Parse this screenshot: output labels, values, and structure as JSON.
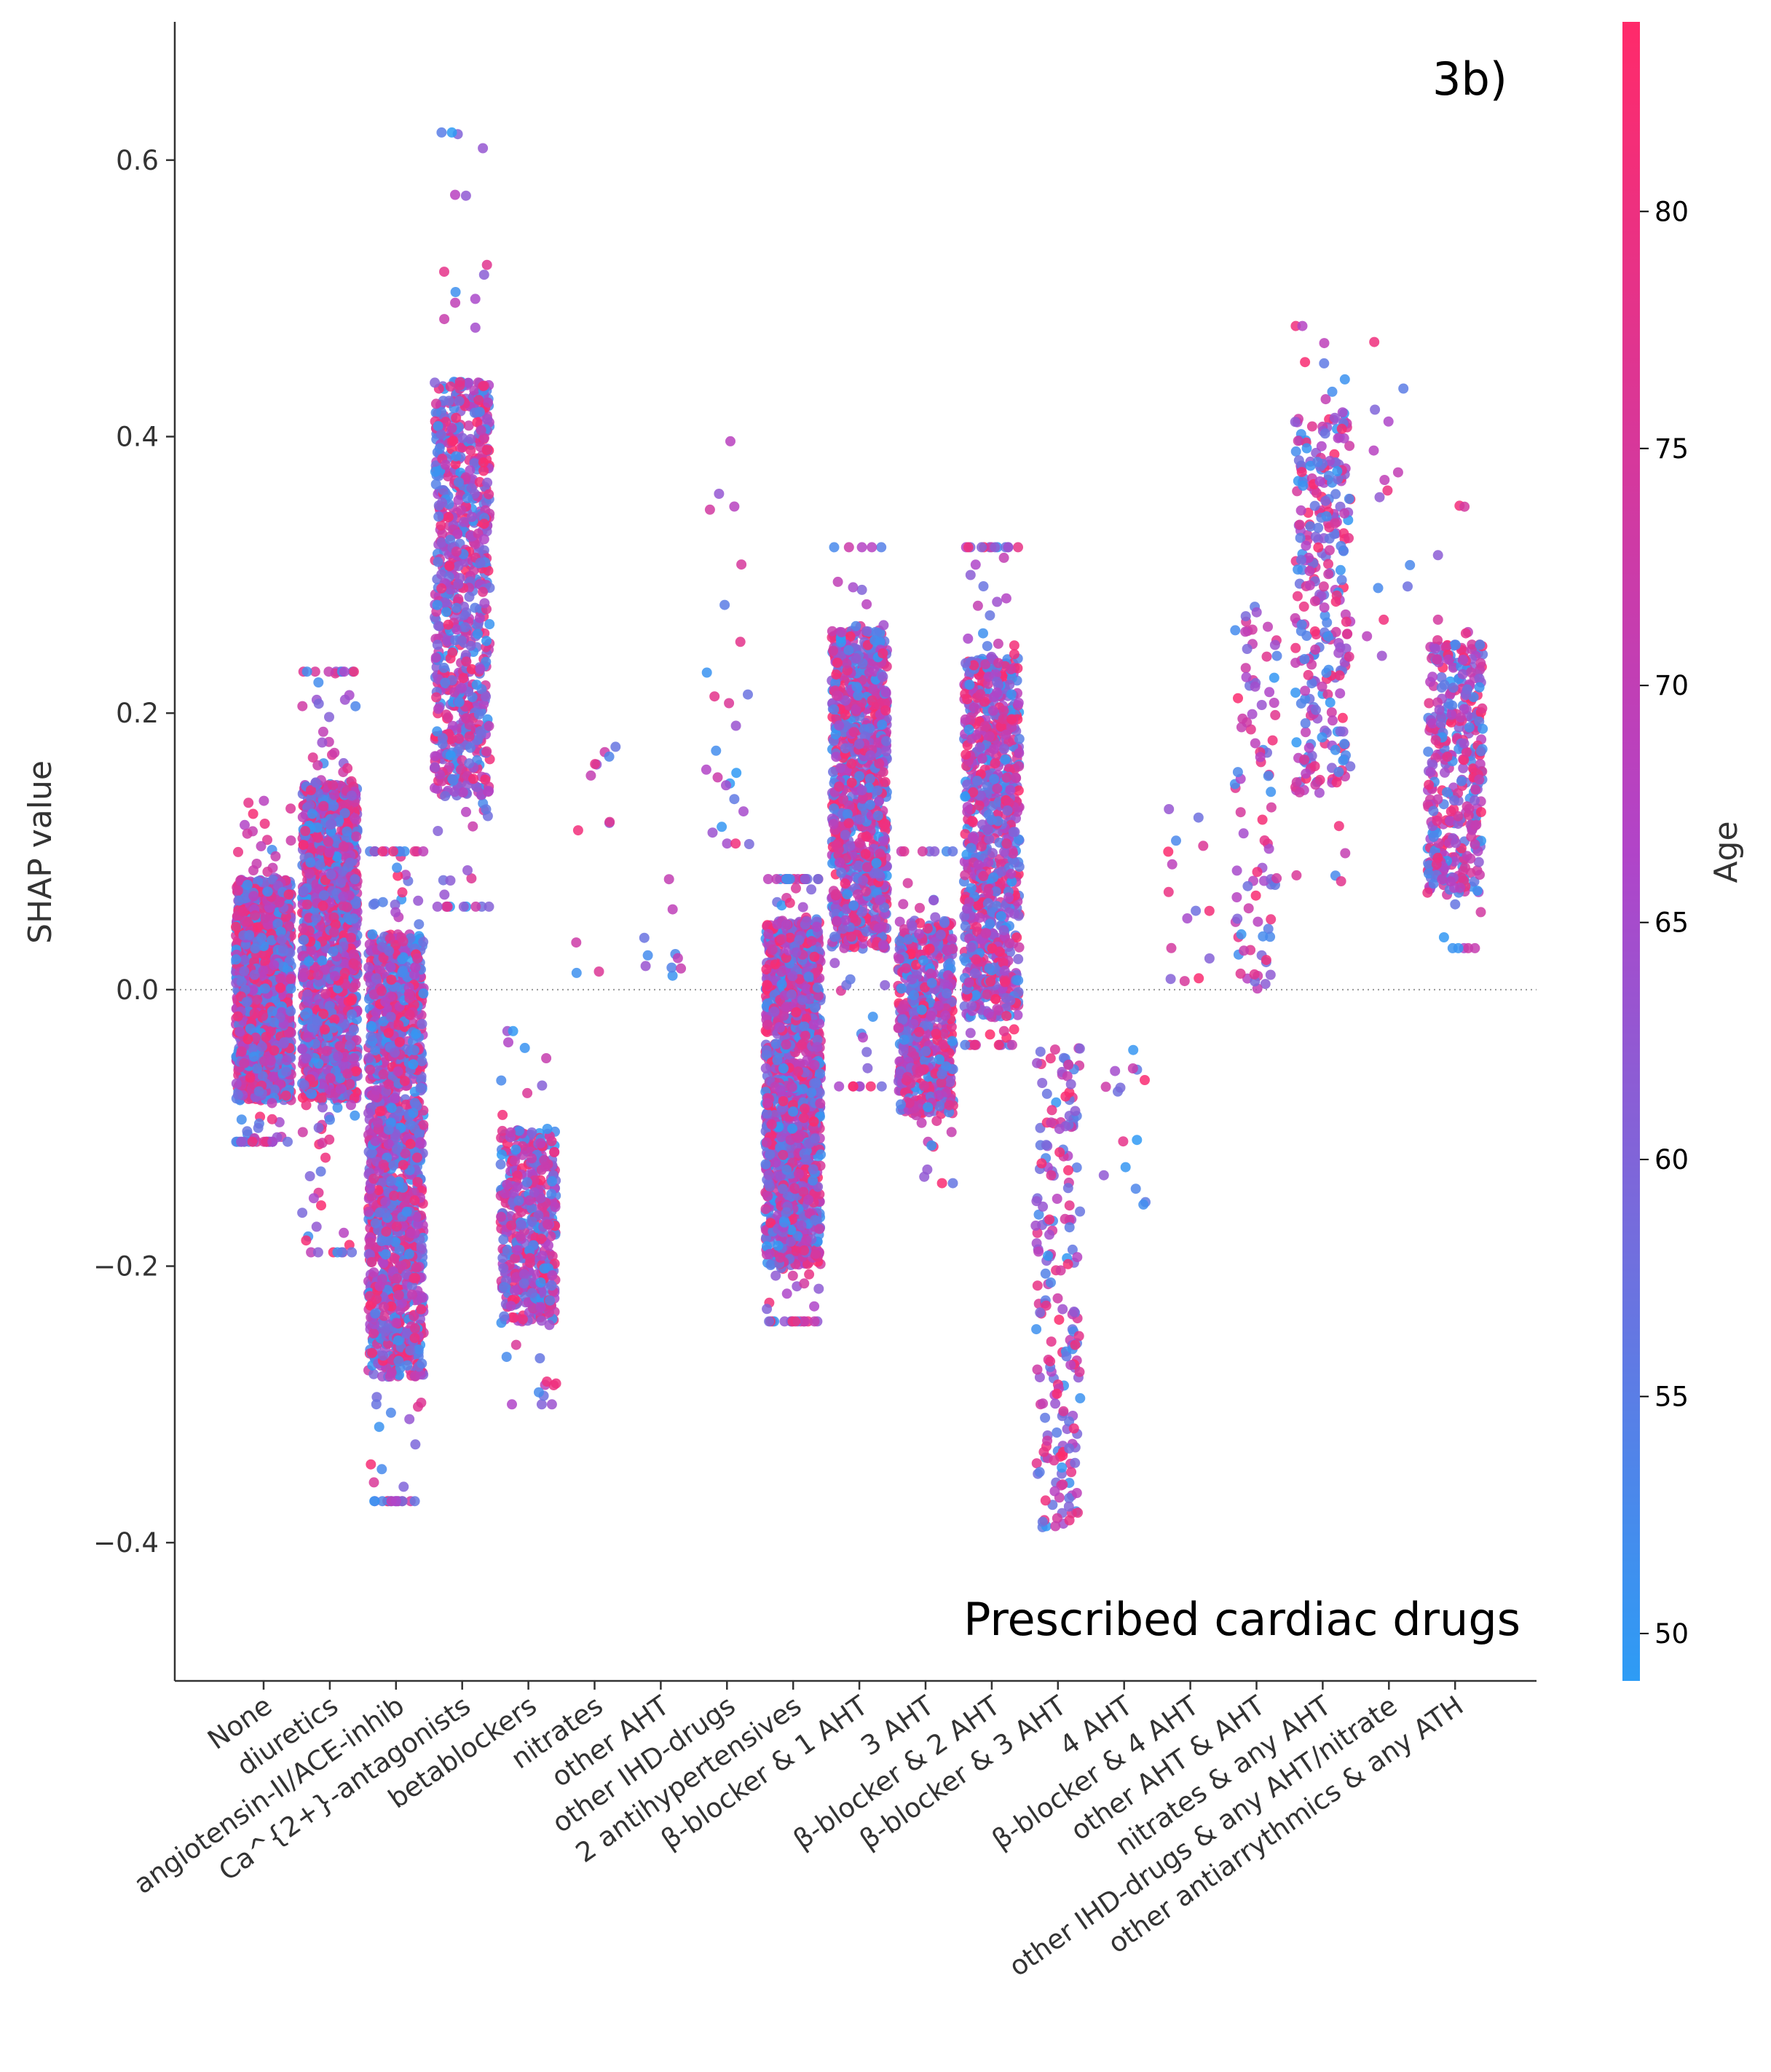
{
  "chart_data": {
    "type": "scatter",
    "panel_label": "3b)",
    "annotation": "Prescribed cardiac drugs",
    "ylabel": "SHAP value",
    "ylim": [
      -0.5,
      0.7
    ],
    "yticks": [
      -0.4,
      -0.2,
      0.0,
      0.2,
      0.4,
      0.6
    ],
    "ytick_labels": [
      "−0.4",
      "−0.2",
      "0.0",
      "0.2",
      "0.4",
      "0.6"
    ],
    "zero_line": true,
    "colorbar": {
      "label": "Age",
      "range": [
        49,
        84
      ],
      "ticks": [
        50,
        55,
        60,
        65,
        70,
        75,
        80
      ],
      "color_low": "#2d9cf5",
      "color_mid": "#b144c8",
      "color_high": "#ff2a6a"
    },
    "categories": [
      "None",
      "diuretics",
      "angiotensin-II/ACE-inhib",
      "Ca^{2+}-antagonists",
      "betablockers",
      "nitrates",
      "other AHT",
      "other IHD-drugs",
      "2 antihypertensives",
      "β-blocker & 1 AHT",
      "3 AHT",
      "β-blocker & 2 AHT",
      "β-blocker & 3 AHT",
      "4 AHT",
      "β-blocker & 4 AHT",
      "other AHT & AHT",
      "nitrates & any AHT",
      "other IHD-drugs & any AHT/nitrate",
      "other antiarrythmics & any ATH"
    ],
    "series": [
      {
        "category": "None",
        "n": 1500,
        "core": [
          -0.08,
          0.08
        ],
        "range": [
          -0.11,
          0.14
        ]
      },
      {
        "category": "diuretics",
        "n": 1500,
        "core": [
          -0.08,
          0.15
        ],
        "range": [
          -0.19,
          0.23
        ]
      },
      {
        "category": "angiotensin-II/ACE-inhib",
        "n": 1500,
        "core": [
          -0.28,
          0.04
        ],
        "range": [
          -0.37,
          0.1
        ]
      },
      {
        "category": "Ca^{2+}-antagonists",
        "n": 800,
        "core": [
          0.14,
          0.44
        ],
        "range": [
          0.06,
          0.62
        ]
      },
      {
        "category": "betablockers",
        "n": 500,
        "core": [
          -0.24,
          -0.1
        ],
        "range": [
          -0.3,
          -0.03
        ]
      },
      {
        "category": "nitrates",
        "n": 12,
        "core": [
          0.0,
          0.18
        ],
        "range": [
          0.0,
          0.18
        ]
      },
      {
        "category": "other AHT",
        "n": 10,
        "core": [
          -0.01,
          0.08
        ],
        "range": [
          -0.01,
          0.08
        ]
      },
      {
        "category": "other IHD-drugs",
        "n": 25,
        "core": [
          0.07,
          0.41
        ],
        "range": [
          0.07,
          0.41
        ]
      },
      {
        "category": "2 antihypertensives",
        "n": 1500,
        "core": [
          -0.2,
          0.05
        ],
        "range": [
          -0.24,
          0.08
        ]
      },
      {
        "category": "β-blocker & 1 AHT",
        "n": 1000,
        "core": [
          0.03,
          0.26
        ],
        "range": [
          -0.07,
          0.32
        ]
      },
      {
        "category": "3 AHT",
        "n": 600,
        "core": [
          -0.09,
          0.05
        ],
        "range": [
          -0.14,
          0.1
        ]
      },
      {
        "category": "β-blocker & 2 AHT",
        "n": 900,
        "core": [
          -0.02,
          0.24
        ],
        "range": [
          -0.04,
          0.32
        ]
      },
      {
        "category": "β-blocker & 3 AHT",
        "n": 200,
        "core": [
          -0.33,
          -0.07
        ],
        "range": [
          -0.39,
          -0.04
        ]
      },
      {
        "category": "4 AHT",
        "n": 15,
        "core": [
          -0.16,
          -0.02
        ],
        "range": [
          -0.16,
          -0.02
        ]
      },
      {
        "category": "β-blocker & 4 AHT",
        "n": 15,
        "core": [
          0.0,
          0.14
        ],
        "range": [
          0.0,
          0.14
        ]
      },
      {
        "category": "other AHT & AHT",
        "n": 90,
        "core": [
          0.02,
          0.28
        ],
        "range": [
          0.0,
          0.28
        ]
      },
      {
        "category": "nitrates & any AHT",
        "n": 300,
        "core": [
          0.14,
          0.42
        ],
        "range": [
          0.0,
          0.48
        ]
      },
      {
        "category": "other IHD-drugs & any AHT/nitrate",
        "n": 15,
        "core": [
          0.22,
          0.48
        ],
        "range": [
          0.22,
          0.48
        ]
      },
      {
        "category": "other antiarrythmics & any ATH",
        "n": 400,
        "core": [
          0.07,
          0.25
        ],
        "range": [
          0.03,
          0.35
        ]
      }
    ]
  }
}
